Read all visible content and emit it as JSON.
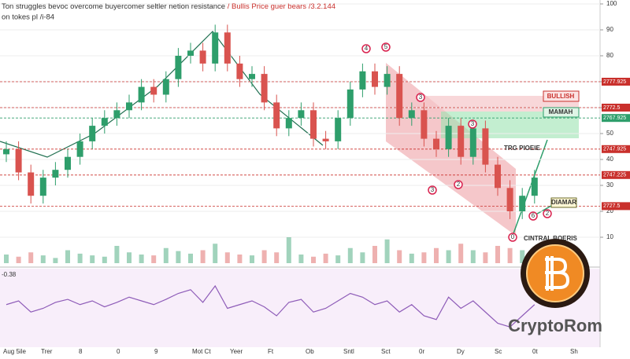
{
  "chart_data": {
    "type": "candlestick",
    "title": "Ton struggles bevoc overcome buyercomer seltler netion resistance",
    "title_highlight": "/ Bullis Price guer bears /3.2.144",
    "subtitle": "on tokes pl /i-84",
    "categories": [
      "Aug 5ile",
      "Trer",
      "8",
      "0",
      "9",
      "Mot Ct",
      "Yeer",
      "Ft",
      "Ob",
      "Sntl",
      "Sct",
      "0r",
      "Dy",
      "Sc",
      "0t",
      "Sh"
    ],
    "open": [
      42,
      44,
      35,
      26,
      33,
      36,
      41,
      47,
      53,
      56,
      59,
      62,
      68,
      65,
      71,
      80,
      82,
      77,
      89,
      77,
      71,
      73,
      62,
      52,
      56,
      59,
      48,
      47,
      56,
      67,
      74,
      68,
      73,
      56,
      59,
      48,
      44,
      53,
      41,
      52,
      38,
      29,
      20,
      26
    ],
    "high": [
      47,
      47,
      38,
      36,
      39,
      44,
      50,
      56,
      59,
      62,
      65,
      71,
      71,
      74,
      83,
      85,
      85,
      92,
      92,
      80,
      76,
      76,
      65,
      59,
      62,
      62,
      51,
      59,
      70,
      77,
      77,
      76,
      76,
      62,
      62,
      51,
      56,
      56,
      55,
      55,
      41,
      32,
      29,
      36
    ],
    "low": [
      39,
      32,
      23,
      23,
      30,
      33,
      38,
      44,
      50,
      53,
      56,
      59,
      62,
      62,
      68,
      77,
      74,
      74,
      74,
      68,
      68,
      59,
      49,
      49,
      53,
      45,
      44,
      44,
      53,
      64,
      65,
      65,
      53,
      53,
      45,
      41,
      41,
      38,
      38,
      35,
      26,
      17,
      17,
      23
    ],
    "close": [
      44,
      35,
      26,
      33,
      36,
      41,
      47,
      53,
      56,
      59,
      62,
      68,
      65,
      71,
      80,
      82,
      77,
      89,
      77,
      71,
      73,
      62,
      52,
      56,
      59,
      48,
      47,
      56,
      67,
      74,
      68,
      73,
      56,
      59,
      48,
      44,
      53,
      41,
      52,
      38,
      29,
      20,
      26,
      33
    ],
    "volume": [
      20,
      15,
      25,
      18,
      12,
      30,
      22,
      18,
      15,
      40,
      25,
      20,
      18,
      35,
      28,
      22,
      30,
      45,
      25,
      20,
      18,
      30,
      25,
      60,
      20,
      15,
      22,
      18,
      35,
      25,
      40,
      55,
      30,
      22,
      25,
      35,
      30,
      45,
      30,
      25,
      40,
      35,
      30,
      25
    ],
    "oscillator": [
      55,
      60,
      45,
      50,
      58,
      62,
      55,
      60,
      52,
      58,
      65,
      60,
      55,
      62,
      70,
      75,
      58,
      80,
      50,
      55,
      60,
      52,
      40,
      58,
      62,
      45,
      50,
      60,
      70,
      65,
      55,
      60,
      45,
      55,
      40,
      35,
      65,
      50,
      60,
      45,
      30,
      25,
      40,
      55
    ],
    "oscillator_label": "-0.38",
    "up_color": "#2e9e6b",
    "down_color": "#d9534f",
    "ylim": [
      0,
      100
    ],
    "yticks": [
      10,
      20,
      30,
      40,
      50,
      60,
      70,
      80,
      90,
      100
    ],
    "volume_lim": [
      0,
      100
    ],
    "oscillator_lim": [
      0,
      100
    ],
    "levels": [
      {
        "value": 70,
        "label": "2777.925",
        "color": "#c9302c"
      },
      {
        "value": 60,
        "label": "2772.5",
        "color": "#c9302c"
      },
      {
        "value": 56,
        "label": "2767.925",
        "color": "#2e9e6b"
      },
      {
        "value": 44,
        "label": "2747.925",
        "color": "#c9302c"
      },
      {
        "value": 34,
        "label": "2747.225",
        "color": "#c9302c"
      },
      {
        "value": 22,
        "label": "2727.5",
        "color": "#c9302c"
      }
    ],
    "annotations": {
      "bullish": "BULLISH",
      "mamah": "MAMAH",
      "trg": "TRG PIOEIE",
      "diamar": "DIAMAR",
      "central": "CINTRAL BOERIS",
      "brand": "CryptoRom",
      "markers": [
        "4",
        "5",
        "3",
        "3",
        "3",
        "2",
        "0",
        "6",
        "2"
      ]
    }
  }
}
